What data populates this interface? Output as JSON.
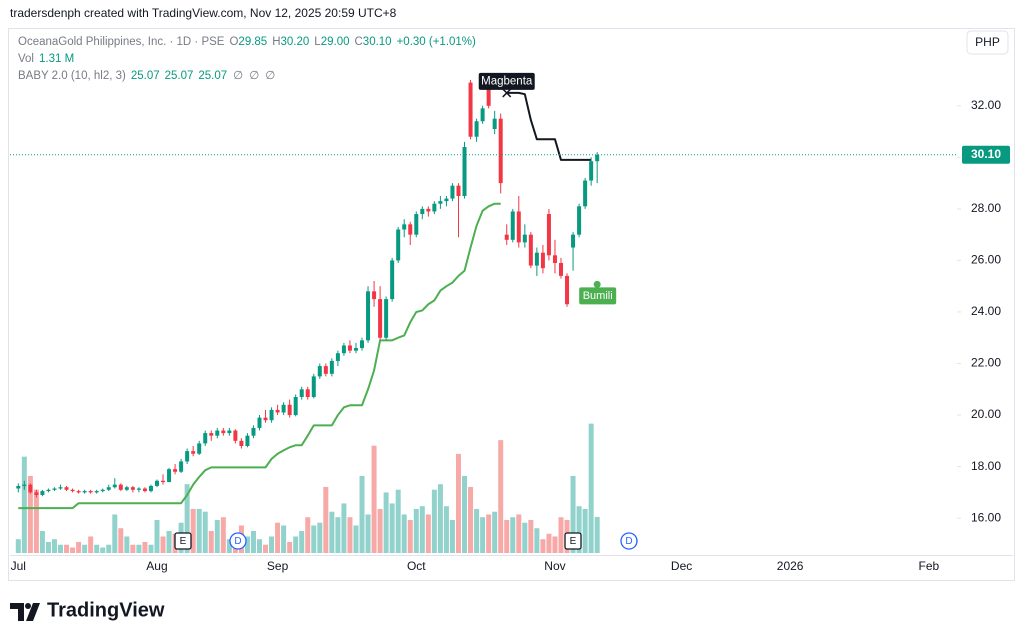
{
  "header": {
    "byline": "tradersdenph created with TradingView.com, Nov 12, 2025 20:59 UTC+8",
    "brand": "TradingView"
  },
  "chart_data": {
    "type": "candlestick",
    "symbol": "OceanaGold Philippines, Inc. · 1D · PSE",
    "ohlc_legend": [
      {
        "key": "O",
        "value": "29.85"
      },
      {
        "key": "H",
        "value": "30.20"
      },
      {
        "key": "L",
        "value": "29.00"
      },
      {
        "key": "C",
        "value": "30.10"
      }
    ],
    "change": "+0.30 (+1.01%)",
    "volume_legend": {
      "key": "Vol",
      "value": "1.31 M"
    },
    "indicator_legend": {
      "name": "BABY 2.0 (10, hl2, 3)",
      "values": [
        25.07,
        25.07,
        25.07
      ],
      "empty": [
        "∅",
        "∅",
        "∅"
      ]
    },
    "currency": "PHP",
    "annotations": [
      "Magbenta",
      "Bumili"
    ],
    "events": [
      "E",
      "D",
      "E",
      "D"
    ],
    "up_color": "#089981",
    "down_color": "#f23645",
    "volume_up_color": "#92d2cc",
    "volume_down_color": "#f7a9a7",
    "ylim": [
      14.57,
      34.98
    ],
    "yticks": [
      {
        "value": 16,
        "label": "16.00"
      },
      {
        "value": 18,
        "label": "18.00"
      },
      {
        "value": 20,
        "label": "20.00"
      },
      {
        "value": 22,
        "label": "22.00"
      },
      {
        "value": 24,
        "label": "24.00"
      },
      {
        "value": 26,
        "label": "26.00"
      },
      {
        "value": 28,
        "label": "28.00"
      },
      {
        "value": 30,
        "label": "30.00"
      },
      {
        "value": 32,
        "label": "32.00"
      }
    ],
    "volume_ylim": [
      0,
      19
    ],
    "last_price": {
      "value": 30.1,
      "label": "30.10"
    },
    "grid": false,
    "categories": [
      "Jul",
      null,
      null,
      null,
      null,
      null,
      null,
      null,
      null,
      null,
      null,
      null,
      null,
      null,
      null,
      null,
      null,
      null,
      null,
      null,
      null,
      null,
      null,
      "Aug",
      null,
      null,
      null,
      null,
      null,
      null,
      null,
      null,
      null,
      null,
      null,
      null,
      null,
      null,
      null,
      null,
      null,
      null,
      null,
      "Sep",
      null,
      null,
      null,
      null,
      null,
      null,
      null,
      null,
      null,
      null,
      null,
      null,
      null,
      null,
      null,
      null,
      null,
      null,
      null,
      null,
      null,
      null,
      "Oct",
      null,
      null,
      null,
      null,
      null,
      null,
      null,
      null,
      null,
      null,
      null,
      null,
      null,
      null,
      null,
      null,
      null,
      null,
      null,
      null,
      null,
      null,
      "Nov",
      null,
      null,
      null,
      null,
      null,
      null,
      null,
      null,
      null,
      null,
      null,
      null,
      null,
      null,
      null,
      null,
      null,
      null,
      null,
      null,
      "Dec",
      null,
      null,
      null,
      null,
      null,
      null,
      null,
      null,
      null,
      null,
      null,
      null,
      null,
      null,
      null,
      null,
      null,
      "2026",
      null,
      null,
      null,
      null,
      null,
      null,
      null,
      null,
      null,
      null,
      null,
      null,
      null,
      null,
      null,
      null,
      null,
      null,
      null,
      null,
      null,
      null,
      "Feb"
    ],
    "open": [
      17.15,
      17.25,
      17.3,
      17.0,
      16.9,
      17.05,
      17.1,
      17.15,
      17.2,
      17.1,
      17.05,
      17.0,
      17.05,
      17.0,
      17.05,
      17.1,
      17.2,
      17.3,
      17.1,
      17.2,
      17.1,
      17.15,
      17.05,
      17.25,
      17.45,
      17.4,
      17.9,
      17.8,
      18.2,
      18.6,
      18.5,
      18.9,
      19.3,
      19.2,
      19.4,
      19.3,
      19.4,
      19.0,
      18.8,
      19.2,
      19.5,
      19.9,
      19.8,
      20.2,
      20.1,
      20.4,
      20.0,
      20.7,
      21.0,
      20.7,
      21.5,
      21.9,
      21.6,
      22.1,
      22.4,
      22.7,
      22.5,
      22.6,
      22.9,
      24.8,
      24.5,
      23.0,
      24.5,
      26.0,
      27.2,
      27.4,
      27.0,
      27.8,
      28.0,
      27.9,
      28.2,
      28.3,
      28.4,
      28.9,
      28.5,
      32.9,
      30.8,
      31.4,
      32.7,
      31.1,
      31.5,
      27.0,
      26.8,
      27.9,
      26.7,
      27.0,
      25.8,
      26.3,
      27.8,
      26.2,
      25.9,
      25.4,
      26.5,
      27.0,
      28.1,
      29.1,
      29.85,
      null,
      null,
      null,
      null,
      null,
      null,
      null,
      null,
      null,
      null,
      null,
      null,
      null,
      null,
      null,
      null,
      null,
      null,
      null,
      null,
      null,
      null,
      null,
      null,
      null,
      null,
      null,
      null,
      null,
      null,
      null,
      null,
      null,
      null,
      null,
      null,
      null,
      null,
      null,
      null,
      null,
      null,
      null,
      null,
      null,
      null,
      null,
      null,
      null,
      null,
      null,
      null,
      null,
      null,
      null
    ],
    "high": [
      17.35,
      17.45,
      17.35,
      17.1,
      17.1,
      17.15,
      17.2,
      17.3,
      17.25,
      17.15,
      17.1,
      17.1,
      17.1,
      17.1,
      17.15,
      17.3,
      17.55,
      17.35,
      17.25,
      17.25,
      17.2,
      17.2,
      17.3,
      17.5,
      17.7,
      17.95,
      18.1,
      18.3,
      18.7,
      18.8,
      19.0,
      19.4,
      19.4,
      19.5,
      19.5,
      19.5,
      19.45,
      19.1,
      19.3,
      19.6,
      20.0,
      20.2,
      20.3,
      20.4,
      20.5,
      20.6,
      20.8,
      21.1,
      21.1,
      21.6,
      22.0,
      22.0,
      22.2,
      22.5,
      22.8,
      22.9,
      22.8,
      23.0,
      25.0,
      25.2,
      25.0,
      24.6,
      26.1,
      27.3,
      27.6,
      27.5,
      27.9,
      28.1,
      28.1,
      28.3,
      28.5,
      28.5,
      29.0,
      29.0,
      30.6,
      33.0,
      31.5,
      32.0,
      33.0,
      31.8,
      31.7,
      27.4,
      28.0,
      28.5,
      27.4,
      27.1,
      26.5,
      26.6,
      28.0,
      26.8,
      26.1,
      25.5,
      27.1,
      28.2,
      29.2,
      30.0,
      30.2,
      null,
      null,
      null,
      null,
      null,
      null,
      null,
      null,
      null,
      null,
      null,
      null,
      null,
      null,
      null,
      null,
      null,
      null,
      null,
      null,
      null,
      null,
      null,
      null,
      null,
      null,
      null,
      null,
      null,
      null,
      null,
      null,
      null,
      null,
      null,
      null,
      null,
      null,
      null,
      null,
      null,
      null,
      null,
      null,
      null,
      null,
      null,
      null,
      null,
      null,
      null,
      null,
      null,
      null,
      null
    ],
    "low": [
      17.0,
      17.1,
      16.95,
      16.8,
      16.85,
      17.0,
      17.05,
      17.1,
      17.05,
      17.0,
      16.95,
      16.95,
      16.95,
      16.95,
      17.0,
      17.05,
      17.15,
      17.05,
      17.05,
      17.0,
      17.0,
      17.0,
      17.0,
      17.2,
      17.3,
      17.4,
      17.7,
      17.75,
      18.1,
      18.4,
      18.45,
      18.8,
      19.0,
      19.1,
      19.2,
      19.2,
      18.9,
      18.7,
      18.75,
      19.1,
      19.4,
      19.7,
      19.7,
      20.0,
      20.0,
      19.9,
      19.95,
      20.6,
      20.6,
      20.65,
      21.4,
      21.5,
      21.5,
      21.9,
      22.3,
      22.4,
      22.4,
      22.5,
      22.8,
      24.2,
      22.9,
      22.9,
      24.4,
      25.9,
      26.9,
      26.6,
      26.9,
      27.6,
      27.7,
      27.8,
      28.0,
      28.1,
      28.3,
      26.9,
      28.4,
      30.7,
      30.6,
      31.3,
      31.9,
      30.9,
      28.6,
      26.6,
      26.7,
      26.5,
      26.5,
      25.7,
      25.4,
      25.5,
      26.0,
      25.5,
      25.3,
      24.2,
      25.6,
      26.9,
      28.0,
      28.9,
      29.0,
      null,
      null,
      null,
      null,
      null,
      null,
      null,
      null,
      null,
      null,
      null,
      null,
      null,
      null,
      null,
      null,
      null,
      null,
      null,
      null,
      null,
      null,
      null,
      null,
      null,
      null,
      null,
      null,
      null,
      null,
      null,
      null,
      null,
      null,
      null,
      null,
      null,
      null,
      null,
      null,
      null,
      null,
      null,
      null,
      null,
      null,
      null,
      null,
      null,
      null,
      null,
      null,
      null,
      null,
      null
    ],
    "close": [
      17.25,
      17.3,
      17.0,
      16.9,
      17.05,
      17.1,
      17.15,
      17.2,
      17.1,
      17.05,
      17.0,
      17.05,
      17.0,
      17.05,
      17.1,
      17.2,
      17.3,
      17.1,
      17.2,
      17.1,
      17.15,
      17.05,
      17.25,
      17.45,
      17.4,
      17.9,
      17.8,
      18.2,
      18.6,
      18.5,
      18.9,
      19.3,
      19.2,
      19.4,
      19.3,
      19.4,
      19.0,
      18.8,
      19.2,
      19.5,
      19.9,
      19.8,
      20.2,
      20.1,
      20.4,
      20.0,
      20.7,
      21.0,
      20.7,
      21.5,
      21.9,
      21.6,
      22.1,
      22.4,
      22.7,
      22.5,
      22.6,
      22.9,
      24.8,
      24.5,
      23.0,
      24.5,
      26.0,
      27.2,
      27.4,
      27.0,
      27.8,
      28.0,
      27.9,
      28.2,
      28.3,
      28.4,
      28.9,
      28.5,
      30.4,
      30.8,
      31.4,
      31.9,
      32.0,
      31.5,
      29.0,
      26.8,
      27.9,
      26.7,
      27.0,
      25.8,
      26.3,
      25.7,
      26.2,
      25.9,
      25.4,
      24.3,
      27.0,
      28.1,
      29.1,
      29.85,
      30.1,
      null,
      null,
      null,
      null,
      null,
      null,
      null,
      null,
      null,
      null,
      null,
      null,
      null,
      null,
      null,
      null,
      null,
      null,
      null,
      null,
      null,
      null,
      null,
      null,
      null,
      null,
      null,
      null,
      null,
      null,
      null,
      null,
      null,
      null,
      null,
      null,
      null,
      null,
      null,
      null,
      null,
      null,
      null,
      null,
      null,
      null,
      null,
      null,
      null,
      null,
      null,
      null,
      null,
      null,
      null
    ],
    "volume": [
      0.5,
      3.5,
      2.8,
      2.3,
      0.8,
      0.4,
      0.5,
      0.3,
      0.3,
      0.2,
      0.4,
      0.3,
      0.6,
      0.3,
      0.2,
      0.3,
      1.4,
      0.9,
      0.6,
      0.3,
      0.3,
      0.4,
      0.3,
      1.2,
      0.6,
      0.8,
      0.7,
      1.1,
      2.5,
      1.6,
      1.6,
      1.5,
      0.8,
      1.2,
      1.3,
      0.5,
      0.7,
      1.0,
      0.6,
      0.8,
      0.5,
      0.3,
      0.6,
      1.1,
      1.0,
      0.4,
      0.6,
      0.8,
      1.3,
      1.0,
      1.1,
      2.4,
      1.5,
      1.3,
      1.8,
      1.3,
      1.0,
      2.8,
      1.4,
      3.9,
      1.6,
      2.2,
      1.8,
      2.3,
      1.4,
      1.2,
      1.6,
      1.7,
      1.4,
      2.3,
      2.5,
      1.7,
      1.2,
      3.6,
      2.8,
      2.4,
      1.6,
      1.3,
      1.4,
      1.5,
      4.1,
      1.2,
      1.3,
      1.4,
      1.1,
      1.2,
      0.9,
      0.5,
      0.7,
      0.6,
      1.3,
      1.2,
      2.8,
      1.7,
      1.6,
      4.7,
      1.31,
      null,
      null,
      null,
      null,
      null,
      null,
      null,
      null,
      null,
      null,
      null,
      null,
      null,
      null,
      null,
      null,
      null,
      null,
      null,
      null,
      null,
      null,
      null,
      null,
      null,
      null,
      null,
      null,
      null,
      null,
      null,
      null,
      null,
      null,
      null,
      null,
      null,
      null,
      null,
      null,
      null,
      null,
      null,
      null,
      null,
      null,
      null,
      null,
      null,
      null,
      null,
      null,
      null,
      null,
      null
    ],
    "lines": [
      {
        "color": "#4caf50",
        "values": [
          16.39,
          16.39,
          16.39,
          16.39,
          16.39,
          16.39,
          16.39,
          16.39,
          16.39,
          16.39,
          16.58,
          16.58,
          16.58,
          16.58,
          16.58,
          16.58,
          16.58,
          16.58,
          16.58,
          16.58,
          16.58,
          16.58,
          16.58,
          16.58,
          16.58,
          16.58,
          16.58,
          16.58,
          16.9,
          17.3,
          17.6,
          17.86,
          17.97,
          17.97,
          17.97,
          17.97,
          17.97,
          17.97,
          17.97,
          17.97,
          17.97,
          17.97,
          18.3,
          18.5,
          18.63,
          18.75,
          18.83,
          18.83,
          19.2,
          19.6,
          19.6,
          19.6,
          19.6,
          20.0,
          20.3,
          20.38,
          20.38,
          20.38,
          21.0,
          21.73,
          22.9,
          22.9,
          22.9,
          23.0,
          23.09,
          23.6,
          24.0,
          24.06,
          24.3,
          24.45,
          24.83,
          25.0,
          25.14,
          25.4,
          25.6,
          26.5,
          27.35,
          27.93,
          28.1,
          28.2,
          28.2,
          null,
          null,
          null,
          null,
          null,
          null,
          null,
          null,
          null,
          null,
          null,
          null,
          null,
          null,
          null,
          null,
          null,
          null,
          null,
          null,
          null,
          null,
          null,
          null,
          null,
          null,
          null,
          null,
          null,
          null,
          null,
          null,
          null,
          null,
          null,
          null,
          null,
          null,
          null,
          null,
          null,
          null,
          null,
          null,
          null,
          null,
          null,
          null,
          null,
          null,
          null,
          null,
          null,
          null,
          null,
          null,
          null,
          null,
          null,
          null,
          null,
          null,
          null,
          null,
          null,
          null,
          null,
          null,
          null,
          null,
          null
        ]
      },
      {
        "color": "#131722",
        "values": [
          null,
          null,
          null,
          null,
          null,
          null,
          null,
          null,
          null,
          null,
          null,
          null,
          null,
          null,
          null,
          null,
          null,
          null,
          null,
          null,
          null,
          null,
          null,
          null,
          null,
          null,
          null,
          null,
          null,
          null,
          null,
          null,
          null,
          null,
          null,
          null,
          null,
          null,
          null,
          null,
          null,
          null,
          null,
          null,
          null,
          null,
          null,
          null,
          null,
          null,
          null,
          null,
          null,
          null,
          null,
          null,
          null,
          null,
          null,
          null,
          null,
          null,
          null,
          null,
          null,
          null,
          null,
          null,
          null,
          null,
          null,
          null,
          null,
          null,
          null,
          null,
          null,
          null,
          null,
          null,
          null,
          32.5,
          32.5,
          32.5,
          32.45,
          31.45,
          30.7,
          30.7,
          30.7,
          30.7,
          29.9,
          29.9,
          29.9,
          29.9,
          29.9,
          29.9,
          null,
          null,
          null,
          null,
          null,
          null,
          null,
          null,
          null,
          null,
          null,
          null,
          null,
          null,
          null,
          null,
          null,
          null,
          null,
          null,
          null,
          null,
          null,
          null,
          null,
          null,
          null,
          null,
          null,
          null,
          null,
          null,
          null,
          null,
          null,
          null,
          null,
          null,
          null,
          null,
          null,
          null,
          null,
          null,
          null,
          null,
          null,
          null,
          null,
          null,
          null,
          null,
          null,
          null,
          null,
          null
        ]
      }
    ]
  }
}
